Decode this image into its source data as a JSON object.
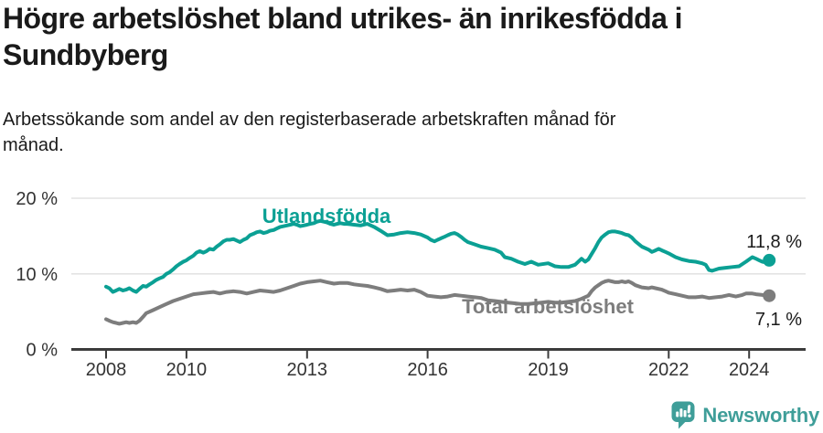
{
  "header": {
    "title": "Högre arbetslöshet bland utrikes- än inrikesfödda i Sundbyberg",
    "subtitle": "Arbetssökande som andel av den registerbaserade arbetskraften månad för månad."
  },
  "chart_data": {
    "type": "line",
    "title": "Högre arbetslöshet bland utrikes- än inrikesfödda i Sundbyberg",
    "xlabel": "",
    "ylabel": "",
    "grid": "horizontal-y",
    "legend_position": "inline-labels",
    "xlim": [
      2007.15,
      2025.4
    ],
    "ylim": [
      0,
      20
    ],
    "yticks": [
      {
        "value": 0,
        "label": "0 %"
      },
      {
        "value": 10,
        "label": "10 %"
      },
      {
        "value": 20,
        "label": "20 %"
      }
    ],
    "xticks": [
      {
        "value": 2008,
        "label": "2008"
      },
      {
        "value": 2010,
        "label": "2010"
      },
      {
        "value": 2013,
        "label": "2013"
      },
      {
        "value": 2016,
        "label": "2016"
      },
      {
        "value": 2019,
        "label": "2019"
      },
      {
        "value": 2022,
        "label": "2022"
      },
      {
        "value": 2024,
        "label": "2024"
      }
    ],
    "colors": {
      "grid": "#e3e3e3",
      "axis": "#3c3c3c",
      "tick_label": "#333333",
      "value_label": "#1a1a1a"
    },
    "series": [
      {
        "name": "Utlandsfödda",
        "color": "#0ba094",
        "end_label": "11,8 %",
        "last_value": 11.8,
        "points": [
          [
            2008.0,
            8.3
          ],
          [
            2008.08,
            8.1
          ],
          [
            2008.17,
            7.6
          ],
          [
            2008.25,
            7.8
          ],
          [
            2008.33,
            8.0
          ],
          [
            2008.42,
            7.8
          ],
          [
            2008.5,
            7.9
          ],
          [
            2008.58,
            8.1
          ],
          [
            2008.67,
            7.8
          ],
          [
            2008.75,
            7.6
          ],
          [
            2008.83,
            8.0
          ],
          [
            2008.92,
            8.4
          ],
          [
            2009.0,
            8.3
          ],
          [
            2009.08,
            8.6
          ],
          [
            2009.17,
            8.9
          ],
          [
            2009.25,
            9.2
          ],
          [
            2009.33,
            9.4
          ],
          [
            2009.42,
            9.6
          ],
          [
            2009.5,
            10.0
          ],
          [
            2009.58,
            10.2
          ],
          [
            2009.67,
            10.6
          ],
          [
            2009.75,
            11.0
          ],
          [
            2009.83,
            11.3
          ],
          [
            2009.92,
            11.6
          ],
          [
            2010.0,
            11.8
          ],
          [
            2010.08,
            12.1
          ],
          [
            2010.17,
            12.4
          ],
          [
            2010.25,
            12.8
          ],
          [
            2010.33,
            13.0
          ],
          [
            2010.42,
            12.8
          ],
          [
            2010.5,
            13.0
          ],
          [
            2010.58,
            13.3
          ],
          [
            2010.67,
            13.2
          ],
          [
            2010.75,
            13.6
          ],
          [
            2010.83,
            13.9
          ],
          [
            2010.92,
            14.3
          ],
          [
            2011.0,
            14.5
          ],
          [
            2011.08,
            14.5
          ],
          [
            2011.17,
            14.6
          ],
          [
            2011.25,
            14.4
          ],
          [
            2011.33,
            14.2
          ],
          [
            2011.42,
            14.5
          ],
          [
            2011.5,
            14.7
          ],
          [
            2011.58,
            15.1
          ],
          [
            2011.67,
            15.3
          ],
          [
            2011.75,
            15.5
          ],
          [
            2011.83,
            15.6
          ],
          [
            2011.92,
            15.4
          ],
          [
            2012.0,
            15.5
          ],
          [
            2012.08,
            15.7
          ],
          [
            2012.17,
            15.8
          ],
          [
            2012.25,
            16.0
          ],
          [
            2012.33,
            16.2
          ],
          [
            2012.42,
            16.3
          ],
          [
            2012.5,
            16.4
          ],
          [
            2012.58,
            16.5
          ],
          [
            2012.67,
            16.6
          ],
          [
            2012.75,
            16.5
          ],
          [
            2012.83,
            16.3
          ],
          [
            2012.92,
            16.4
          ],
          [
            2013.0,
            16.5
          ],
          [
            2013.08,
            16.6
          ],
          [
            2013.17,
            16.7
          ],
          [
            2013.25,
            16.9
          ],
          [
            2013.33,
            17.0
          ],
          [
            2013.42,
            16.9
          ],
          [
            2013.5,
            16.8
          ],
          [
            2013.58,
            16.6
          ],
          [
            2013.67,
            16.5
          ],
          [
            2013.75,
            16.6
          ],
          [
            2013.83,
            16.7
          ],
          [
            2013.92,
            16.6
          ],
          [
            2014.0,
            16.6
          ],
          [
            2014.17,
            16.5
          ],
          [
            2014.33,
            16.4
          ],
          [
            2014.5,
            16.6
          ],
          [
            2014.67,
            16.2
          ],
          [
            2014.83,
            15.7
          ],
          [
            2015.0,
            15.1
          ],
          [
            2015.17,
            15.2
          ],
          [
            2015.33,
            15.4
          ],
          [
            2015.5,
            15.5
          ],
          [
            2015.67,
            15.4
          ],
          [
            2015.83,
            15.2
          ],
          [
            2016.0,
            14.8
          ],
          [
            2016.08,
            14.5
          ],
          [
            2016.17,
            14.3
          ],
          [
            2016.25,
            14.5
          ],
          [
            2016.33,
            14.7
          ],
          [
            2016.42,
            14.9
          ],
          [
            2016.5,
            15.1
          ],
          [
            2016.58,
            15.3
          ],
          [
            2016.67,
            15.4
          ],
          [
            2016.75,
            15.2
          ],
          [
            2016.83,
            14.9
          ],
          [
            2016.92,
            14.5
          ],
          [
            2017.0,
            14.2
          ],
          [
            2017.17,
            13.9
          ],
          [
            2017.33,
            13.6
          ],
          [
            2017.5,
            13.4
          ],
          [
            2017.67,
            13.2
          ],
          [
            2017.83,
            12.8
          ],
          [
            2017.92,
            12.2
          ],
          [
            2018.08,
            12.0
          ],
          [
            2018.25,
            11.6
          ],
          [
            2018.42,
            11.3
          ],
          [
            2018.58,
            11.6
          ],
          [
            2018.75,
            11.2
          ],
          [
            2019.0,
            11.4
          ],
          [
            2019.17,
            11.0
          ],
          [
            2019.33,
            10.9
          ],
          [
            2019.5,
            10.9
          ],
          [
            2019.67,
            11.2
          ],
          [
            2019.83,
            12.0
          ],
          [
            2019.92,
            11.6
          ],
          [
            2020.0,
            11.9
          ],
          [
            2020.08,
            12.6
          ],
          [
            2020.17,
            13.4
          ],
          [
            2020.25,
            14.2
          ],
          [
            2020.33,
            14.8
          ],
          [
            2020.42,
            15.2
          ],
          [
            2020.5,
            15.5
          ],
          [
            2020.58,
            15.6
          ],
          [
            2020.67,
            15.6
          ],
          [
            2020.75,
            15.5
          ],
          [
            2020.83,
            15.4
          ],
          [
            2020.92,
            15.2
          ],
          [
            2021.0,
            15.1
          ],
          [
            2021.08,
            14.8
          ],
          [
            2021.17,
            14.3
          ],
          [
            2021.33,
            13.6
          ],
          [
            2021.5,
            13.2
          ],
          [
            2021.58,
            12.9
          ],
          [
            2021.67,
            13.1
          ],
          [
            2021.75,
            13.3
          ],
          [
            2021.83,
            13.1
          ],
          [
            2021.92,
            12.9
          ],
          [
            2022.0,
            12.7
          ],
          [
            2022.17,
            12.2
          ],
          [
            2022.33,
            11.9
          ],
          [
            2022.5,
            11.7
          ],
          [
            2022.67,
            11.6
          ],
          [
            2022.83,
            11.4
          ],
          [
            2022.92,
            11.2
          ],
          [
            2023.0,
            10.5
          ],
          [
            2023.08,
            10.4
          ],
          [
            2023.25,
            10.7
          ],
          [
            2023.42,
            10.8
          ],
          [
            2023.58,
            10.9
          ],
          [
            2023.75,
            11.0
          ],
          [
            2023.92,
            11.6
          ],
          [
            2024.08,
            12.2
          ],
          [
            2024.17,
            12.0
          ],
          [
            2024.25,
            11.8
          ],
          [
            2024.33,
            11.6
          ],
          [
            2024.42,
            11.5
          ],
          [
            2024.5,
            11.8
          ]
        ]
      },
      {
        "name": "Total arbetslöshet",
        "color": "#7d7d7d",
        "end_label": "7,1 %",
        "last_value": 7.1,
        "points": [
          [
            2008.0,
            4.0
          ],
          [
            2008.08,
            3.8
          ],
          [
            2008.17,
            3.6
          ],
          [
            2008.25,
            3.5
          ],
          [
            2008.33,
            3.4
          ],
          [
            2008.42,
            3.5
          ],
          [
            2008.5,
            3.6
          ],
          [
            2008.58,
            3.5
          ],
          [
            2008.67,
            3.6
          ],
          [
            2008.75,
            3.5
          ],
          [
            2008.83,
            3.8
          ],
          [
            2008.92,
            4.3
          ],
          [
            2009.0,
            4.8
          ],
          [
            2009.17,
            5.2
          ],
          [
            2009.33,
            5.6
          ],
          [
            2009.5,
            6.0
          ],
          [
            2009.67,
            6.4
          ],
          [
            2009.83,
            6.7
          ],
          [
            2010.0,
            7.0
          ],
          [
            2010.17,
            7.3
          ],
          [
            2010.33,
            7.4
          ],
          [
            2010.5,
            7.5
          ],
          [
            2010.67,
            7.6
          ],
          [
            2010.83,
            7.4
          ],
          [
            2011.0,
            7.6
          ],
          [
            2011.17,
            7.7
          ],
          [
            2011.33,
            7.6
          ],
          [
            2011.5,
            7.4
          ],
          [
            2011.67,
            7.6
          ],
          [
            2011.83,
            7.8
          ],
          [
            2012.0,
            7.7
          ],
          [
            2012.17,
            7.6
          ],
          [
            2012.33,
            7.8
          ],
          [
            2012.5,
            8.1
          ],
          [
            2012.67,
            8.4
          ],
          [
            2012.83,
            8.7
          ],
          [
            2013.0,
            8.9
          ],
          [
            2013.17,
            9.0
          ],
          [
            2013.33,
            9.1
          ],
          [
            2013.5,
            8.9
          ],
          [
            2013.67,
            8.7
          ],
          [
            2013.83,
            8.8
          ],
          [
            2014.0,
            8.8
          ],
          [
            2014.17,
            8.6
          ],
          [
            2014.33,
            8.5
          ],
          [
            2014.5,
            8.4
          ],
          [
            2014.67,
            8.2
          ],
          [
            2014.83,
            8.0
          ],
          [
            2015.0,
            7.7
          ],
          [
            2015.17,
            7.8
          ],
          [
            2015.33,
            7.9
          ],
          [
            2015.5,
            7.8
          ],
          [
            2015.67,
            7.9
          ],
          [
            2015.83,
            7.6
          ],
          [
            2016.0,
            7.1
          ],
          [
            2016.17,
            7.0
          ],
          [
            2016.33,
            6.9
          ],
          [
            2016.5,
            7.0
          ],
          [
            2016.67,
            7.2
          ],
          [
            2016.83,
            7.1
          ],
          [
            2017.0,
            7.0
          ],
          [
            2017.17,
            6.9
          ],
          [
            2017.33,
            6.8
          ],
          [
            2017.5,
            6.5
          ],
          [
            2017.67,
            6.4
          ],
          [
            2017.83,
            6.3
          ],
          [
            2018.0,
            6.2
          ],
          [
            2018.17,
            6.1
          ],
          [
            2018.33,
            6.0
          ],
          [
            2018.5,
            6.0
          ],
          [
            2018.67,
            6.1
          ],
          [
            2018.83,
            6.2
          ],
          [
            2019.0,
            6.3
          ],
          [
            2019.17,
            6.2
          ],
          [
            2019.33,
            6.2
          ],
          [
            2019.5,
            6.3
          ],
          [
            2019.67,
            6.4
          ],
          [
            2019.83,
            6.7
          ],
          [
            2020.0,
            7.1
          ],
          [
            2020.08,
            7.7
          ],
          [
            2020.17,
            8.2
          ],
          [
            2020.25,
            8.5
          ],
          [
            2020.33,
            8.8
          ],
          [
            2020.42,
            9.0
          ],
          [
            2020.5,
            9.1
          ],
          [
            2020.58,
            9.0
          ],
          [
            2020.67,
            8.9
          ],
          [
            2020.75,
            8.9
          ],
          [
            2020.83,
            9.0
          ],
          [
            2020.92,
            8.9
          ],
          [
            2021.0,
            9.0
          ],
          [
            2021.08,
            8.8
          ],
          [
            2021.17,
            8.5
          ],
          [
            2021.33,
            8.2
          ],
          [
            2021.5,
            8.1
          ],
          [
            2021.58,
            8.2
          ],
          [
            2021.67,
            8.1
          ],
          [
            2021.83,
            7.9
          ],
          [
            2021.92,
            7.7
          ],
          [
            2022.0,
            7.5
          ],
          [
            2022.17,
            7.3
          ],
          [
            2022.33,
            7.1
          ],
          [
            2022.5,
            6.9
          ],
          [
            2022.67,
            6.9
          ],
          [
            2022.83,
            7.0
          ],
          [
            2023.0,
            6.8
          ],
          [
            2023.17,
            6.9
          ],
          [
            2023.33,
            7.0
          ],
          [
            2023.5,
            7.2
          ],
          [
            2023.67,
            7.0
          ],
          [
            2023.83,
            7.2
          ],
          [
            2023.92,
            7.4
          ],
          [
            2024.08,
            7.4
          ],
          [
            2024.17,
            7.3
          ],
          [
            2024.33,
            7.2
          ],
          [
            2024.5,
            7.1
          ]
        ]
      }
    ]
  },
  "footer": {
    "brand": "Newsworthy",
    "brand_color": "#3f9e99",
    "logo_icon": "newsworthy-bar-chart-bubble-icon"
  }
}
